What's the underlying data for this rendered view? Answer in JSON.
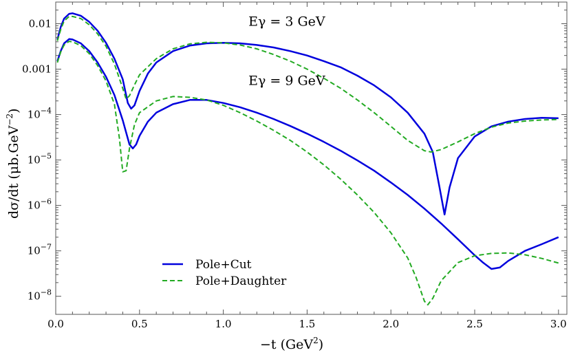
{
  "chart_data": {
    "type": "line",
    "title": "",
    "xlabel": "−t (GeV",
    "xlabel_sup": "2",
    "xlabel_close": ")",
    "ylabel": "dσ/dt (μb.GeV",
    "ylabel_sup": "−2",
    "ylabel_close": ")",
    "xlim": [
      0,
      3.05
    ],
    "ylim": [
      4e-09,
      0.03
    ],
    "yscale": "log",
    "xticks": [
      {
        "value": 0.0,
        "label": "0.0"
      },
      {
        "value": 0.5,
        "label": "0.5"
      },
      {
        "value": 1.0,
        "label": "1.0"
      },
      {
        "value": 1.5,
        "label": "1.5"
      },
      {
        "value": 2.0,
        "label": "2.0"
      },
      {
        "value": 2.5,
        "label": "2.5"
      },
      {
        "value": 3.0,
        "label": "3.0"
      }
    ],
    "yticks": [
      {
        "value": 0.01,
        "label": "0.01",
        "sup": ""
      },
      {
        "value": 0.001,
        "label": "0.001",
        "sup": ""
      },
      {
        "value": 0.0001,
        "label": "10",
        "sup": "−4"
      },
      {
        "value": 1e-05,
        "label": "10",
        "sup": "−5"
      },
      {
        "value": 1e-06,
        "label": "10",
        "sup": "−6"
      },
      {
        "value": 1e-07,
        "label": "10",
        "sup": "−7"
      },
      {
        "value": 1e-08,
        "label": "10",
        "sup": "−8"
      }
    ],
    "annotations": [
      {
        "label": "Eγ = 3 GeV",
        "x": 1.15,
        "y": 0.009
      },
      {
        "label": "Eγ = 9 GeV",
        "x": 1.15,
        "y": 0.00045
      }
    ],
    "grid": false,
    "legend": "bottom-left",
    "series": [
      {
        "name": "Pole+Cut",
        "group": "Eγ = 3 GeV",
        "color": "#0000dd",
        "dash": "solid",
        "points": [
          [
            0.01,
            0.0045
          ],
          [
            0.03,
            0.0085
          ],
          [
            0.05,
            0.013
          ],
          [
            0.08,
            0.0165
          ],
          [
            0.1,
            0.017
          ],
          [
            0.15,
            0.015
          ],
          [
            0.2,
            0.011
          ],
          [
            0.25,
            0.007
          ],
          [
            0.3,
            0.0038
          ],
          [
            0.35,
            0.0017
          ],
          [
            0.4,
            0.0006
          ],
          [
            0.43,
            0.00018
          ],
          [
            0.45,
            0.000135
          ],
          [
            0.47,
            0.00016
          ],
          [
            0.5,
            0.00033
          ],
          [
            0.55,
            0.0008
          ],
          [
            0.6,
            0.0014
          ],
          [
            0.7,
            0.0025
          ],
          [
            0.8,
            0.0033
          ],
          [
            0.9,
            0.0037
          ],
          [
            1.0,
            0.0038
          ],
          [
            1.1,
            0.0037
          ],
          [
            1.2,
            0.0034
          ],
          [
            1.3,
            0.003
          ],
          [
            1.4,
            0.0025
          ],
          [
            1.5,
            0.002
          ],
          [
            1.6,
            0.0015
          ],
          [
            1.7,
            0.0011
          ],
          [
            1.8,
            0.00072
          ],
          [
            1.9,
            0.00044
          ],
          [
            2.0,
            0.00024
          ],
          [
            2.1,
            0.00011
          ],
          [
            2.2,
            3.8e-05
          ],
          [
            2.25,
            1.5e-05
          ],
          [
            2.29,
            2.5e-06
          ],
          [
            2.32,
            6.3e-07
          ],
          [
            2.35,
            2.5e-06
          ],
          [
            2.4,
            1.1e-05
          ],
          [
            2.5,
            3.3e-05
          ],
          [
            2.6,
            5.5e-05
          ],
          [
            2.7,
            7e-05
          ],
          [
            2.8,
            8e-05
          ],
          [
            2.9,
            8.5e-05
          ],
          [
            3.0,
            8.3e-05
          ]
        ]
      },
      {
        "name": "Pole+Daughter",
        "group": "Eγ = 3 GeV",
        "color": "#22aa22",
        "dash": "dashed",
        "points": [
          [
            0.01,
            0.0042
          ],
          [
            0.03,
            0.0075
          ],
          [
            0.05,
            0.0115
          ],
          [
            0.08,
            0.0145
          ],
          [
            0.1,
            0.0145
          ],
          [
            0.15,
            0.013
          ],
          [
            0.2,
            0.0095
          ],
          [
            0.25,
            0.006
          ],
          [
            0.3,
            0.0032
          ],
          [
            0.35,
            0.0013
          ],
          [
            0.4,
            0.00038
          ],
          [
            0.42,
            0.00022
          ],
          [
            0.44,
            0.00026
          ],
          [
            0.47,
            0.00045
          ],
          [
            0.5,
            0.00075
          ],
          [
            0.6,
            0.0017
          ],
          [
            0.7,
            0.0028
          ],
          [
            0.8,
            0.0036
          ],
          [
            0.9,
            0.0039
          ],
          [
            1.0,
            0.0038
          ],
          [
            1.1,
            0.0034
          ],
          [
            1.2,
            0.0028
          ],
          [
            1.3,
            0.0021
          ],
          [
            1.4,
            0.0015
          ],
          [
            1.5,
            0.001
          ],
          [
            1.6,
            0.00063
          ],
          [
            1.7,
            0.00038
          ],
          [
            1.8,
            0.00021
          ],
          [
            1.9,
            0.00011
          ],
          [
            2.0,
            5.5e-05
          ],
          [
            2.1,
            2.7e-05
          ],
          [
            2.2,
            1.6e-05
          ],
          [
            2.24,
            1.5e-05
          ],
          [
            2.3,
            1.7e-05
          ],
          [
            2.4,
            2.5e-05
          ],
          [
            2.5,
            3.8e-05
          ],
          [
            2.6,
            5.3e-05
          ],
          [
            2.7,
            6.5e-05
          ],
          [
            2.8,
            7.2e-05
          ],
          [
            2.9,
            7.6e-05
          ],
          [
            3.0,
            7.8e-05
          ]
        ]
      },
      {
        "name": "Pole+Cut",
        "group": "Eγ = 9 GeV",
        "color": "#0000dd",
        "dash": "solid",
        "points": [
          [
            0.01,
            0.0015
          ],
          [
            0.03,
            0.0025
          ],
          [
            0.05,
            0.0037
          ],
          [
            0.08,
            0.0046
          ],
          [
            0.1,
            0.0045
          ],
          [
            0.15,
            0.0037
          ],
          [
            0.2,
            0.0025
          ],
          [
            0.25,
            0.0014
          ],
          [
            0.3,
            0.00068
          ],
          [
            0.35,
            0.00027
          ],
          [
            0.4,
            7.5e-05
          ],
          [
            0.44,
            2.2e-05
          ],
          [
            0.46,
            1.8e-05
          ],
          [
            0.48,
            2.2e-05
          ],
          [
            0.5,
            3.4e-05
          ],
          [
            0.55,
            7e-05
          ],
          [
            0.6,
            0.00011
          ],
          [
            0.7,
            0.00017
          ],
          [
            0.8,
            0.00021
          ],
          [
            0.9,
            0.00021
          ],
          [
            1.0,
            0.00018
          ],
          [
            1.1,
            0.000145
          ],
          [
            1.2,
            0.00011
          ],
          [
            1.3,
            8e-05
          ],
          [
            1.4,
            5.6e-05
          ],
          [
            1.5,
            3.8e-05
          ],
          [
            1.6,
            2.5e-05
          ],
          [
            1.7,
            1.6e-05
          ],
          [
            1.8,
            9.8e-06
          ],
          [
            1.9,
            5.8e-06
          ],
          [
            2.0,
            3.2e-06
          ],
          [
            2.1,
            1.7e-06
          ],
          [
            2.2,
            8.5e-07
          ],
          [
            2.3,
            4e-07
          ],
          [
            2.4,
            1.8e-07
          ],
          [
            2.5,
            8e-08
          ],
          [
            2.55,
            5.5e-08
          ],
          [
            2.6,
            4e-08
          ],
          [
            2.65,
            4.3e-08
          ],
          [
            2.7,
            6e-08
          ],
          [
            2.8,
            1e-07
          ],
          [
            2.9,
            1.4e-07
          ],
          [
            3.0,
            2e-07
          ]
        ]
      },
      {
        "name": "Pole+Daughter",
        "group": "Eγ = 9 GeV",
        "color": "#22aa22",
        "dash": "dashed",
        "points": [
          [
            0.01,
            0.0014
          ],
          [
            0.03,
            0.0024
          ],
          [
            0.05,
            0.0034
          ],
          [
            0.08,
            0.0041
          ],
          [
            0.1,
            0.004
          ],
          [
            0.15,
            0.0033
          ],
          [
            0.2,
            0.0022
          ],
          [
            0.25,
            0.0012
          ],
          [
            0.3,
            0.00055
          ],
          [
            0.35,
            0.00017
          ],
          [
            0.38,
            3e-05
          ],
          [
            0.4,
            5.5e-06
          ],
          [
            0.42,
            5.8e-06
          ],
          [
            0.44,
            1.8e-05
          ],
          [
            0.47,
            6e-05
          ],
          [
            0.5,
            0.00011
          ],
          [
            0.6,
            0.0002
          ],
          [
            0.7,
            0.00025
          ],
          [
            0.8,
            0.00024
          ],
          [
            0.9,
            0.00021
          ],
          [
            1.0,
            0.00016
          ],
          [
            1.1,
            0.00011
          ],
          [
            1.2,
            7.2e-05
          ],
          [
            1.3,
            4.5e-05
          ],
          [
            1.4,
            2.7e-05
          ],
          [
            1.5,
            1.5e-05
          ],
          [
            1.6,
            7.8e-06
          ],
          [
            1.7,
            3.8e-06
          ],
          [
            1.8,
            1.7e-06
          ],
          [
            1.9,
            7e-07
          ],
          [
            2.0,
            2.5e-07
          ],
          [
            2.1,
            7e-08
          ],
          [
            2.15,
            2.6e-08
          ],
          [
            2.2,
            7.8e-09
          ],
          [
            2.22,
            6.5e-09
          ],
          [
            2.25,
            9e-09
          ],
          [
            2.3,
            2.2e-08
          ],
          [
            2.4,
            5.5e-08
          ],
          [
            2.5,
            7.8e-08
          ],
          [
            2.6,
            8.8e-08
          ],
          [
            2.7,
            9e-08
          ],
          [
            2.8,
            8.2e-08
          ],
          [
            2.9,
            6.8e-08
          ],
          [
            3.0,
            5.4e-08
          ]
        ]
      }
    ]
  }
}
